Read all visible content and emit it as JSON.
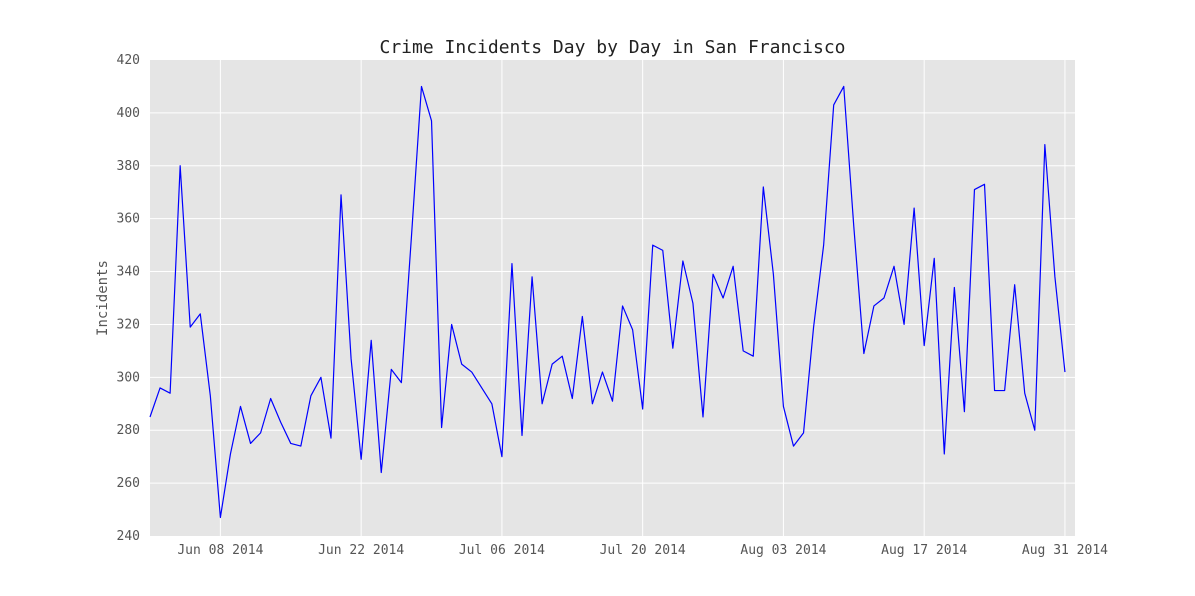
{
  "chart_data": {
    "type": "line",
    "title": "Crime Incidents Day by Day in San Francisco",
    "xlabel": "",
    "ylabel": "Incidents",
    "xlim": [
      "2014-06-01",
      "2014-09-01"
    ],
    "ylim": [
      240,
      420
    ],
    "yticks": [
      240,
      260,
      280,
      300,
      320,
      340,
      360,
      380,
      400,
      420
    ],
    "xticks": [
      {
        "date": "2014-06-08",
        "label": "Jun 08 2014"
      },
      {
        "date": "2014-06-22",
        "label": "Jun 22 2014"
      },
      {
        "date": "2014-07-06",
        "label": "Jul 06 2014"
      },
      {
        "date": "2014-07-20",
        "label": "Jul 20 2014"
      },
      {
        "date": "2014-08-03",
        "label": "Aug 03 2014"
      },
      {
        "date": "2014-08-17",
        "label": "Aug 17 2014"
      },
      {
        "date": "2014-08-31",
        "label": "Aug 31 2014"
      }
    ],
    "grid": true,
    "line_color": "#0000ff",
    "background_color": "#e5e5e5",
    "points": [
      [
        "2014-06-01",
        285
      ],
      [
        "2014-06-02",
        296
      ],
      [
        "2014-06-03",
        294
      ],
      [
        "2014-06-04",
        380
      ],
      [
        "2014-06-05",
        319
      ],
      [
        "2014-06-06",
        324
      ],
      [
        "2014-06-07",
        293
      ],
      [
        "2014-06-08",
        247
      ],
      [
        "2014-06-09",
        271
      ],
      [
        "2014-06-10",
        289
      ],
      [
        "2014-06-11",
        275
      ],
      [
        "2014-06-12",
        279
      ],
      [
        "2014-06-13",
        292
      ],
      [
        "2014-06-14",
        283
      ],
      [
        "2014-06-15",
        275
      ],
      [
        "2014-06-16",
        274
      ],
      [
        "2014-06-17",
        293
      ],
      [
        "2014-06-18",
        300
      ],
      [
        "2014-06-19",
        277
      ],
      [
        "2014-06-20",
        369
      ],
      [
        "2014-06-21",
        307
      ],
      [
        "2014-06-22",
        269
      ],
      [
        "2014-06-23",
        314
      ],
      [
        "2014-06-24",
        264
      ],
      [
        "2014-06-25",
        303
      ],
      [
        "2014-06-26",
        298
      ],
      [
        "2014-06-27",
        353
      ],
      [
        "2014-06-28",
        410
      ],
      [
        "2014-06-29",
        397
      ],
      [
        "2014-06-30",
        281
      ],
      [
        "2014-07-01",
        320
      ],
      [
        "2014-07-02",
        305
      ],
      [
        "2014-07-03",
        302
      ],
      [
        "2014-07-04",
        296
      ],
      [
        "2014-07-05",
        290
      ],
      [
        "2014-07-06",
        270
      ],
      [
        "2014-07-07",
        343
      ],
      [
        "2014-07-08",
        278
      ],
      [
        "2014-07-09",
        338
      ],
      [
        "2014-07-10",
        290
      ],
      [
        "2014-07-11",
        305
      ],
      [
        "2014-07-12",
        308
      ],
      [
        "2014-07-13",
        292
      ],
      [
        "2014-07-14",
        323
      ],
      [
        "2014-07-15",
        290
      ],
      [
        "2014-07-16",
        302
      ],
      [
        "2014-07-17",
        291
      ],
      [
        "2014-07-18",
        327
      ],
      [
        "2014-07-19",
        318
      ],
      [
        "2014-07-20",
        288
      ],
      [
        "2014-07-21",
        350
      ],
      [
        "2014-07-22",
        348
      ],
      [
        "2014-07-23",
        311
      ],
      [
        "2014-07-24",
        344
      ],
      [
        "2014-07-25",
        328
      ],
      [
        "2014-07-26",
        285
      ],
      [
        "2014-07-27",
        339
      ],
      [
        "2014-07-28",
        330
      ],
      [
        "2014-07-29",
        342
      ],
      [
        "2014-07-30",
        310
      ],
      [
        "2014-07-31",
        308
      ],
      [
        "2014-08-01",
        372
      ],
      [
        "2014-08-02",
        339
      ],
      [
        "2014-08-03",
        289
      ],
      [
        "2014-08-04",
        274
      ],
      [
        "2014-08-05",
        279
      ],
      [
        "2014-08-06",
        319
      ],
      [
        "2014-08-07",
        350
      ],
      [
        "2014-08-08",
        403
      ],
      [
        "2014-08-09",
        410
      ],
      [
        "2014-08-10",
        357
      ],
      [
        "2014-08-11",
        309
      ],
      [
        "2014-08-12",
        327
      ],
      [
        "2014-08-13",
        330
      ],
      [
        "2014-08-14",
        342
      ],
      [
        "2014-08-15",
        320
      ],
      [
        "2014-08-16",
        364
      ],
      [
        "2014-08-17",
        312
      ],
      [
        "2014-08-18",
        345
      ],
      [
        "2014-08-19",
        271
      ],
      [
        "2014-08-20",
        334
      ],
      [
        "2014-08-21",
        287
      ],
      [
        "2014-08-22",
        371
      ],
      [
        "2014-08-23",
        373
      ],
      [
        "2014-08-24",
        295
      ],
      [
        "2014-08-25",
        295
      ],
      [
        "2014-08-26",
        335
      ],
      [
        "2014-08-27",
        294
      ],
      [
        "2014-08-28",
        280
      ],
      [
        "2014-08-29",
        388
      ],
      [
        "2014-08-30",
        338
      ],
      [
        "2014-08-31",
        302
      ]
    ]
  }
}
